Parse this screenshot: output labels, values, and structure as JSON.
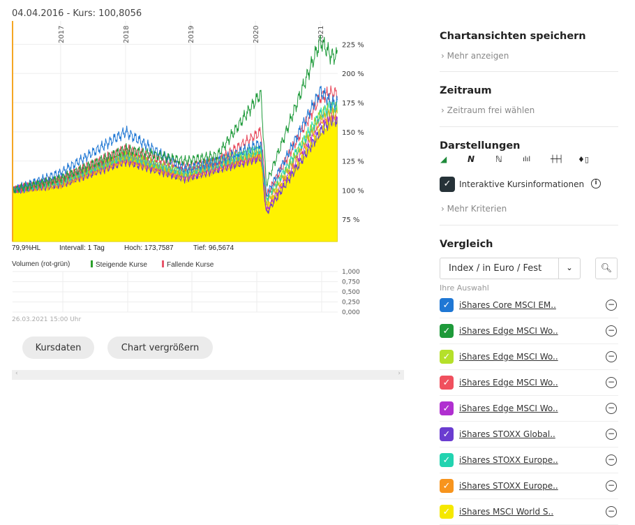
{
  "header": {
    "date": "04.04.2016",
    "separator": "-",
    "price_label": "Kurs: 100,8056"
  },
  "stats": {
    "hl": "79,9%HL",
    "interval": "Intervall: 1 Tag",
    "high": "Hoch: 173,7587",
    "low": "Tief: 96,5674"
  },
  "volume": {
    "label": "Volumen (rot-grün)",
    "rising": "Steigende Kurse",
    "falling": "Fallende Kurse",
    "rising_color": "#2ca02c",
    "falling_color": "#e8566b",
    "ticks": [
      "1,000",
      "0,750",
      "0,500",
      "0,250",
      "0,000"
    ],
    "timestamp": "26.03.2021 15:00 Uhr"
  },
  "buttons": {
    "kursdaten": "Kursdaten",
    "enlarge": "Chart vergrößern"
  },
  "scrollbar": {
    "left": "‹",
    "right": "›"
  },
  "chart_data": {
    "type": "line",
    "x_ticks": [
      "2017",
      "2018",
      "2019",
      "2020",
      "2021"
    ],
    "y_ticks": [
      "75 %",
      "100 %",
      "125 %",
      "150 %",
      "175 %",
      "200 %",
      "225 %"
    ],
    "ylim": [
      56,
      245
    ],
    "xlim": [
      "2016-04",
      "2021-03"
    ],
    "grid": true,
    "dates": [
      "2016-04",
      "2017-01",
      "2018-01",
      "2018-12",
      "2019-06",
      "2020-02",
      "2020-03",
      "2021-01",
      "2021-03"
    ],
    "series": [
      {
        "name": "iShares Core MSCI EM..",
        "color": "#1f77d4",
        "values": [
          100,
          115,
          150,
          118,
          125,
          140,
          95,
          185,
          175
        ]
      },
      {
        "name": "iShares Edge MSCI Wo..",
        "color": "#1e9a3a",
        "values": [
          100,
          110,
          135,
          125,
          130,
          183,
          105,
          228,
          215
        ]
      },
      {
        "name": "iShares Edge MSCI Wo..",
        "color": "#a8d820",
        "values": [
          100,
          108,
          130,
          115,
          125,
          135,
          90,
          165,
          170
        ]
      },
      {
        "name": "iShares Edge MSCI Wo..",
        "color": "#e8475a",
        "values": [
          100,
          110,
          135,
          120,
          125,
          150,
          95,
          180,
          183
        ]
      },
      {
        "name": "iShares Edge MSCI Wo..",
        "color": "#b02fd0",
        "values": [
          100,
          108,
          128,
          112,
          120,
          130,
          82,
          160,
          165
        ]
      },
      {
        "name": "iShares STOXX Global..",
        "color": "#6a3cd0",
        "values": [
          100,
          105,
          125,
          110,
          118,
          128,
          80,
          150,
          160
        ]
      },
      {
        "name": "iShares STOXX Europe..",
        "color": "#22d3b0",
        "values": [
          100,
          108,
          130,
          115,
          122,
          135,
          92,
          165,
          172
        ]
      },
      {
        "name": "iShares STOXX Europe..",
        "color": "#f7941d",
        "values": [
          100,
          105,
          127,
          112,
          120,
          132,
          88,
          160,
          165
        ]
      },
      {
        "name": "iShares MSCI World S..",
        "color": "#fff200",
        "values": [
          100,
          105,
          130,
          110,
          118,
          130,
          85,
          150,
          160
        ],
        "area": true
      }
    ]
  },
  "sidebar": {
    "save": {
      "title": "Chartansichten speichern",
      "link": "Mehr anzeigen"
    },
    "period": {
      "title": "Zeitraum",
      "link": "Zeitraum frei wählen"
    },
    "display": {
      "title": "Darstellungen",
      "icons": [
        "area-chart-icon",
        "line-chart-icon",
        "dot-line-chart-icon",
        "bar-chart-icon",
        "ohlc-chart-icon",
        "candlestick-chart-icon"
      ],
      "checkbox_label": "Interaktive Kursinformationen",
      "checked": true,
      "more": "Mehr Kriterien"
    },
    "compare": {
      "title": "Vergleich",
      "select_value": "Index / in Euro / Fest",
      "selection_label": "Ihre Auswahl",
      "items": [
        {
          "label": "iShares Core MSCI EM..",
          "color": "#1f77d4"
        },
        {
          "label": "iShares Edge MSCI Wo..",
          "color": "#1e9a3a"
        },
        {
          "label": "iShares Edge MSCI Wo..",
          "color": "#b5e02a"
        },
        {
          "label": "iShares Edge MSCI Wo..",
          "color": "#f0505e"
        },
        {
          "label": "iShares Edge MSCI Wo..",
          "color": "#b02fd0"
        },
        {
          "label": "iShares STOXX Global..",
          "color": "#6a3cd0"
        },
        {
          "label": "iShares STOXX Europe..",
          "color": "#22d3b0"
        },
        {
          "label": "iShares STOXX Europe..",
          "color": "#f7941d"
        },
        {
          "label": "iShares MSCI World S..",
          "color": "#f5e800"
        }
      ]
    }
  }
}
